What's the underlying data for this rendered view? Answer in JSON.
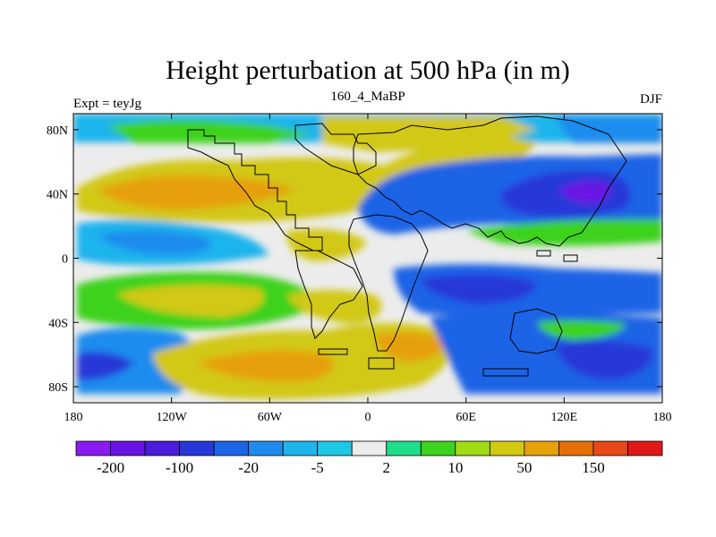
{
  "chart_data": {
    "type": "heatmap",
    "title": "Height perturbation at 500 hPa (in m)",
    "left_label": "Expt = teyJg",
    "center_label": "160_4_MaBP",
    "right_label": "DJF",
    "x_range": [
      -180,
      180
    ],
    "y_range": [
      -90,
      90
    ],
    "x_ticks": [
      {
        "value": -180,
        "label": "180"
      },
      {
        "value": -120,
        "label": "120W"
      },
      {
        "value": -60,
        "label": "60W"
      },
      {
        "value": 0,
        "label": "0"
      },
      {
        "value": 60,
        "label": "60E"
      },
      {
        "value": 120,
        "label": "120E"
      },
      {
        "value": 180,
        "label": "180"
      }
    ],
    "y_ticks": [
      {
        "value": 80,
        "label": "80N"
      },
      {
        "value": 40,
        "label": "40N"
      },
      {
        "value": 0,
        "label": "0"
      },
      {
        "value": -40,
        "label": "40S"
      },
      {
        "value": -80,
        "label": "80S"
      }
    ],
    "colorbar": {
      "colors": [
        "#8a1cf0",
        "#6a14e4",
        "#4a1cdc",
        "#2838d8",
        "#1e64e6",
        "#1e8cee",
        "#1eb4ec",
        "#1ec8e4",
        "#ececec",
        "#1ede8c",
        "#3cd21e",
        "#a0dc14",
        "#d2c812",
        "#e6a00a",
        "#e66e06",
        "#e84818",
        "#e01818"
      ],
      "labels": [
        {
          "after_box": 1,
          "text": "-200"
        },
        {
          "after_box": 3,
          "text": "-100"
        },
        {
          "after_box": 5,
          "text": "-20"
        },
        {
          "after_box": 7,
          "text": "-5"
        },
        {
          "after_box": 9,
          "text": "2"
        },
        {
          "after_box": 11,
          "text": "10"
        },
        {
          "after_box": 13,
          "text": "50"
        },
        {
          "after_box": 15,
          "text": "150"
        }
      ]
    }
  }
}
